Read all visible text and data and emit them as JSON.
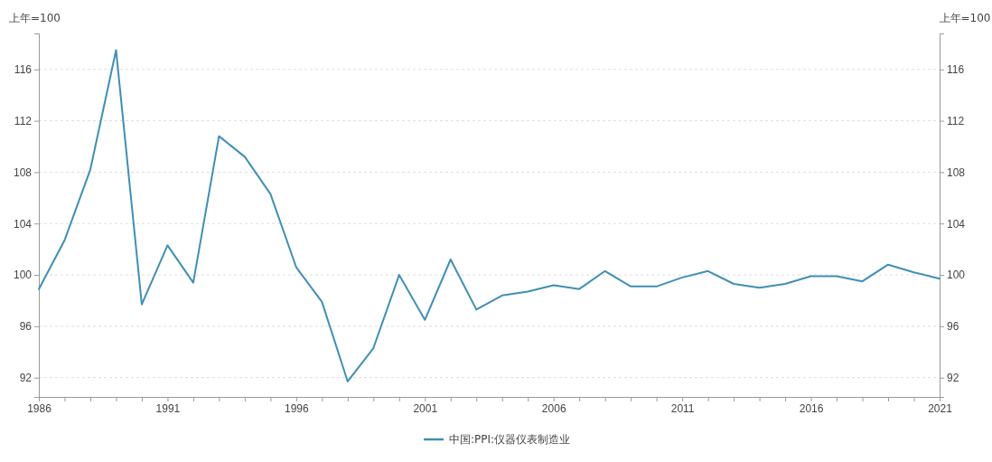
{
  "chart_data": {
    "type": "line",
    "ylabel": "上年=100",
    "y2label": "上年=100",
    "x": [
      1986,
      1987,
      1988,
      1989,
      1990,
      1991,
      1992,
      1993,
      1994,
      1995,
      1996,
      1997,
      1998,
      1999,
      2000,
      2001,
      2002,
      2003,
      2004,
      2005,
      2006,
      2007,
      2008,
      2009,
      2010,
      2011,
      2012,
      2013,
      2014,
      2015,
      2016,
      2017,
      2018,
      2019,
      2020,
      2021
    ],
    "series": [
      {
        "name": "中国:PPI:仪器仪表制造业",
        "color": "#3f8fb5",
        "values": [
          98.9,
          102.7,
          108.2,
          117.5,
          97.7,
          102.3,
          99.4,
          110.8,
          109.2,
          106.3,
          100.6,
          97.9,
          91.7,
          94.3,
          100.0,
          96.5,
          101.2,
          97.3,
          98.4,
          98.7,
          99.2,
          98.9,
          100.3,
          99.1,
          99.1,
          99.8,
          100.3,
          99.3,
          99.0,
          99.3,
          99.9,
          99.9,
          99.5,
          100.8,
          100.2,
          99.7
        ]
      }
    ],
    "xlim": [
      1986,
      2021
    ],
    "xticks": [
      1986,
      {
        "value": 1987,
        "label": null
      },
      {
        "value": 1988,
        "label": null
      },
      {
        "value": 1989,
        "label": null
      },
      {
        "value": 1990,
        "label": null
      },
      1991,
      {
        "value": 1992,
        "label": null
      },
      {
        "value": 1993,
        "label": null
      },
      {
        "value": 1994,
        "label": null
      },
      {
        "value": 1995,
        "label": null
      },
      1996,
      {
        "value": 1997,
        "label": null
      },
      {
        "value": 1998,
        "label": null
      },
      {
        "value": 1999,
        "label": null
      },
      {
        "value": 2000,
        "label": null
      },
      2001,
      {
        "value": 2002,
        "label": null
      },
      {
        "value": 2003,
        "label": null
      },
      {
        "value": 2004,
        "label": null
      },
      {
        "value": 2005,
        "label": null
      },
      2006,
      {
        "value": 2007,
        "label": null
      },
      {
        "value": 2008,
        "label": null
      },
      {
        "value": 2009,
        "label": null
      },
      {
        "value": 2010,
        "label": null
      },
      2011,
      {
        "value": 2012,
        "label": null
      },
      {
        "value": 2013,
        "label": null
      },
      {
        "value": 2014,
        "label": null
      },
      {
        "value": 2015,
        "label": null
      },
      2016,
      {
        "value": 2017,
        "label": null
      },
      {
        "value": 2018,
        "label": null
      },
      {
        "value": 2019,
        "label": null
      },
      {
        "value": 2020,
        "label": null
      },
      2021
    ],
    "ylim": [
      90.5,
      118.8
    ],
    "yticks": [
      92,
      96,
      100,
      104,
      108,
      112,
      116
    ],
    "y2lim": [
      90.5,
      118.8
    ],
    "y2ticks": [
      92,
      96,
      100,
      104,
      108,
      112,
      116
    ],
    "grid": "y",
    "legend": "bottom",
    "marker": "none",
    "line_style": "solid"
  }
}
